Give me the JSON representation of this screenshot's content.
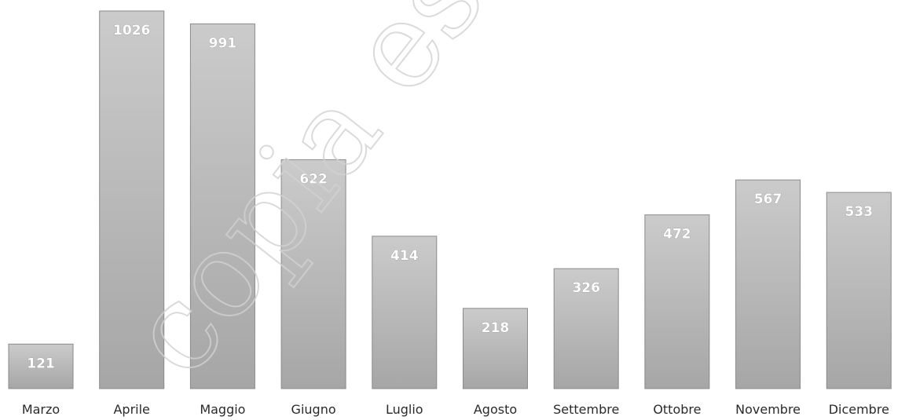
{
  "chart_data": {
    "type": "bar",
    "categories": [
      "Marzo",
      "Aprile",
      "Maggio",
      "Giugno",
      "Luglio",
      "Agosto",
      "Settembre",
      "Ottobre",
      "Novembre",
      "Dicembre"
    ],
    "values": [
      121,
      1026,
      991,
      622,
      414,
      218,
      326,
      472,
      567,
      533
    ],
    "title": "",
    "xlabel": "",
    "ylabel": "",
    "ylim": [
      0,
      1026
    ],
    "grid": false,
    "legend": "none",
    "colors": {
      "bar_fill_top": "#c9c9c9",
      "bar_fill_bottom": "#a9a9a9",
      "bar_stroke": "#8a8a8a",
      "label": "#ffffff"
    }
  },
  "watermark": {
    "text": "copia estratta"
  }
}
